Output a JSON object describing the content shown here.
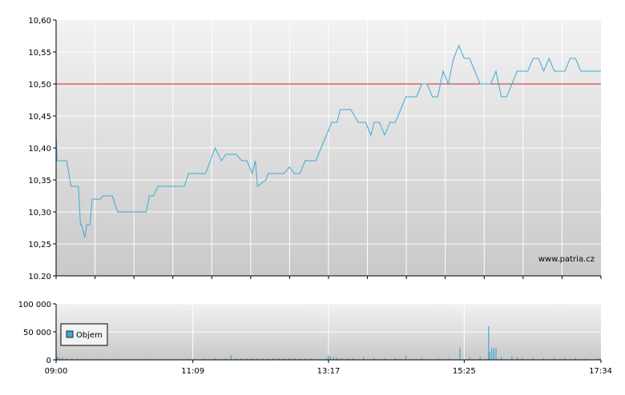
{
  "watermark": "www.patria.cz",
  "legend_label": "Objem",
  "colors": {
    "price_line": "#3fa9d6",
    "reference_line": "#cc2222",
    "volume_bar": "#3fa9d6",
    "grid": "#ffffff",
    "axis": "#000000",
    "plot_bg_top": "#f2f2f2",
    "plot_bg_bottom": "#c9c9c9"
  },
  "chart_data": [
    {
      "type": "line",
      "name": "price",
      "ylim": [
        10.2,
        10.6
      ],
      "y_ticks": [
        "10,60",
        "10,55",
        "10,50",
        "10,45",
        "10,40",
        "10,35",
        "10,30",
        "10,25",
        "10.20"
      ],
      "y_tick_values": [
        10.6,
        10.55,
        10.5,
        10.45,
        10.4,
        10.35,
        10.3,
        10.25,
        10.2
      ],
      "reference_value": 10.5,
      "x_range_minutes": [
        0,
        514
      ],
      "grid": true,
      "series": [
        {
          "x_minutes": [
            0,
            1,
            3,
            10,
            12,
            14,
            16,
            21,
            23,
            24,
            27,
            29,
            31,
            32,
            34,
            36,
            40,
            42,
            44,
            50,
            53,
            58,
            62,
            67,
            72,
            75,
            80,
            85,
            88,
            92,
            96,
            105,
            110,
            115,
            121,
            125,
            128,
            130,
            136,
            141,
            150,
            156,
            160,
            170,
            175,
            180,
            185,
            188,
            190,
            198,
            200,
            205,
            210,
            215,
            220,
            225,
            230,
            235,
            240,
            245,
            250,
            255,
            260,
            265,
            268,
            270,
            278,
            285,
            292,
            297,
            300,
            305,
            310,
            315,
            320,
            325,
            330,
            335,
            340,
            345,
            350,
            355,
            360,
            365,
            370,
            375,
            380,
            385,
            390,
            395,
            400,
            405,
            410,
            415,
            420,
            425,
            430,
            435,
            440,
            445,
            450,
            455,
            460,
            465,
            470,
            475,
            480,
            485,
            490,
            495,
            500,
            505,
            510,
            514
          ],
          "values": [
            10.42,
            10.38,
            10.38,
            10.38,
            10.36,
            10.34,
            10.34,
            10.34,
            10.28,
            10.28,
            10.26,
            10.28,
            10.28,
            10.28,
            10.32,
            10.32,
            10.32,
            10.32,
            10.325,
            10.325,
            10.325,
            10.3,
            10.3,
            10.3,
            10.3,
            10.3,
            10.3,
            10.3,
            10.325,
            10.325,
            10.34,
            10.34,
            10.34,
            10.34,
            10.34,
            10.36,
            10.36,
            10.36,
            10.36,
            10.36,
            10.4,
            10.38,
            10.39,
            10.39,
            10.38,
            10.38,
            10.36,
            10.38,
            10.34,
            10.35,
            10.36,
            10.36,
            10.36,
            10.36,
            10.37,
            10.36,
            10.36,
            10.38,
            10.38,
            10.38,
            10.4,
            10.42,
            10.44,
            10.44,
            10.46,
            10.46,
            10.46,
            10.44,
            10.44,
            10.42,
            10.44,
            10.44,
            10.42,
            10.44,
            10.44,
            10.46,
            10.48,
            10.48,
            10.48,
            10.5,
            10.5,
            10.48,
            10.48,
            10.52,
            10.5,
            10.54,
            10.56,
            10.54,
            10.54,
            10.52,
            10.5,
            10.5,
            10.5,
            10.52,
            10.48,
            10.48,
            10.5,
            10.52,
            10.52,
            10.52,
            10.54,
            10.54,
            10.52,
            10.54,
            10.52,
            10.52,
            10.52,
            10.54,
            10.54,
            10.52,
            10.52,
            10.52,
            10.52,
            10.52
          ]
        }
      ]
    },
    {
      "type": "bar",
      "name": "volume",
      "ylim": [
        0,
        100000
      ],
      "y_ticks": [
        "100 000",
        "50 000",
        "0"
      ],
      "y_tick_values": [
        100000,
        50000,
        0
      ],
      "x_ticks": [
        "09:00",
        "11:09",
        "13:17",
        "15:25",
        "17:34"
      ],
      "x_tick_minutes": [
        0,
        129,
        257,
        385,
        514
      ],
      "x_range_minutes": [
        0,
        514
      ],
      "legend": "Objem",
      "grid": true,
      "series": [
        {
          "name": "Objem",
          "x_minutes": [
            1,
            3,
            6,
            10,
            15,
            20,
            30,
            45,
            60,
            90,
            125,
            140,
            150,
            160,
            165,
            170,
            175,
            180,
            185,
            190,
            195,
            200,
            205,
            210,
            215,
            220,
            225,
            230,
            235,
            240,
            255,
            257,
            259,
            262,
            265,
            270,
            275,
            280,
            290,
            300,
            310,
            320,
            330,
            345,
            360,
            370,
            381,
            390,
            400,
            408,
            409,
            411,
            413,
            415,
            420,
            430,
            435,
            440,
            450,
            460,
            470,
            480,
            490,
            500,
            510,
            513
          ],
          "values": [
            6000,
            5000,
            4000,
            3000,
            2000,
            2000,
            2000,
            1500,
            1500,
            1500,
            2000,
            2500,
            3000,
            3000,
            8000,
            3000,
            2500,
            3000,
            3500,
            3000,
            3000,
            3000,
            3500,
            3000,
            3000,
            3500,
            3000,
            3000,
            3000,
            3000,
            3000,
            8000,
            6000,
            5000,
            4000,
            3500,
            3000,
            3000,
            5000,
            3500,
            3000,
            3000,
            8000,
            3000,
            2500,
            2000,
            22000,
            5000,
            6000,
            60000,
            14000,
            21000,
            21000,
            21000,
            5000,
            7000,
            4500,
            3000,
            3000,
            3000,
            3000,
            3000,
            3500,
            2000,
            2000,
            3500
          ]
        }
      ]
    }
  ]
}
